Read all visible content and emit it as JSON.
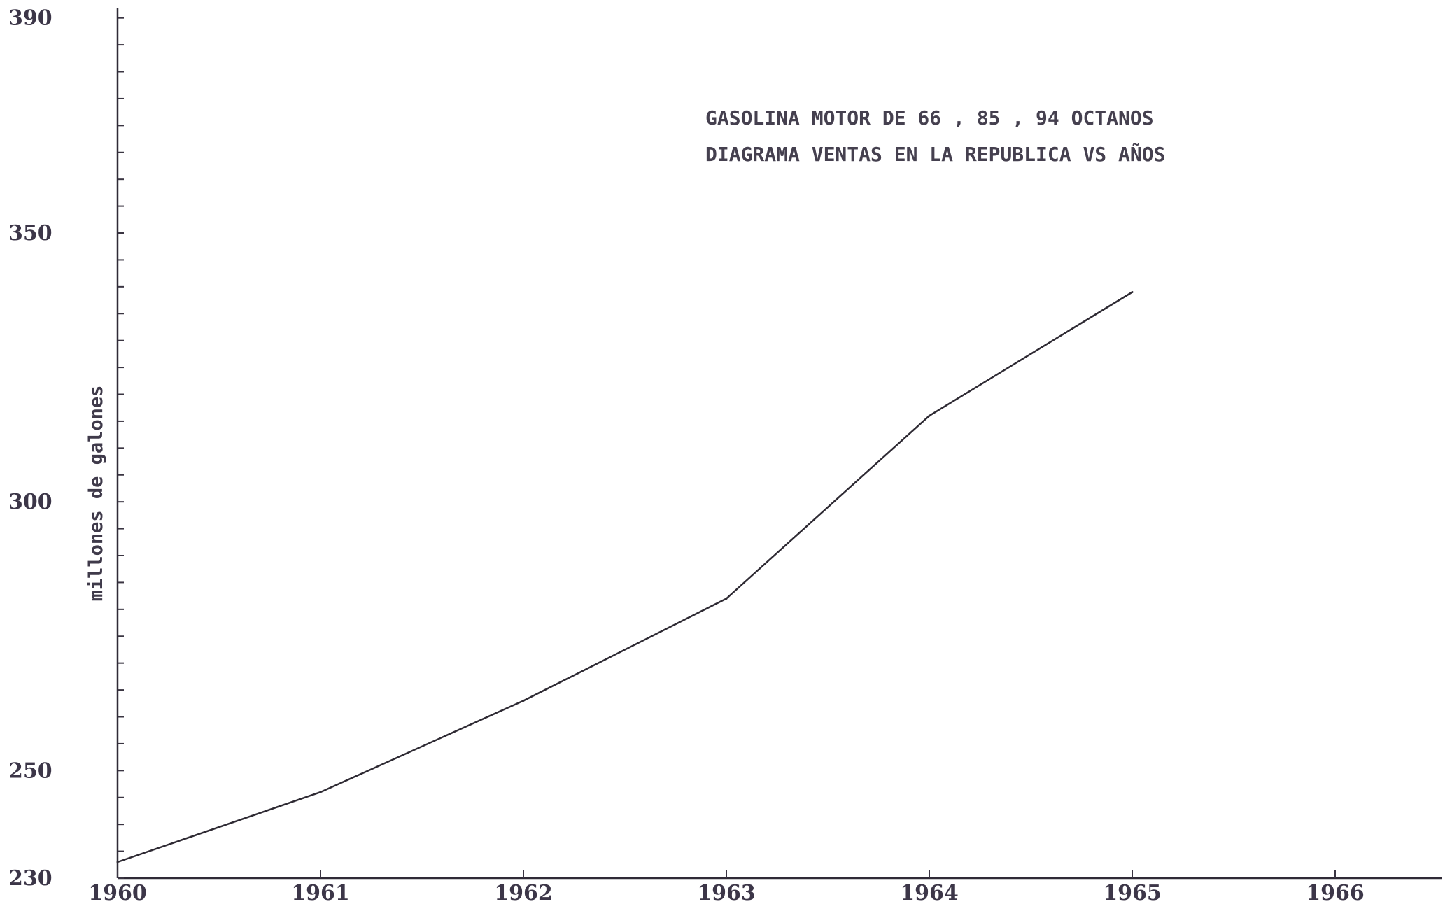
{
  "chart_data": {
    "type": "line",
    "title_lines": [
      "GASOLINA MOTOR DE 66 , 85 , 94 OCTANOS",
      "DIAGRAMA VENTAS EN LA REPUBLICA VS AÑOS"
    ],
    "xlabel": "",
    "ylabel": "millones de galones",
    "categories": [
      "1960",
      "1961",
      "1962",
      "1963",
      "1964",
      "1965",
      "1966"
    ],
    "x": [
      1960,
      1961,
      1962,
      1963,
      1964,
      1965
    ],
    "series": [
      {
        "values": [
          233,
          246,
          263,
          282,
          316,
          339
        ]
      }
    ],
    "y_ticks_labeled": [
      230,
      250,
      300,
      350,
      390
    ],
    "y_minor_step": 5,
    "xlim": [
      1960,
      1966.6
    ],
    "ylim": [
      230,
      391
    ],
    "grid": false,
    "line_color": "#2e2a33"
  }
}
